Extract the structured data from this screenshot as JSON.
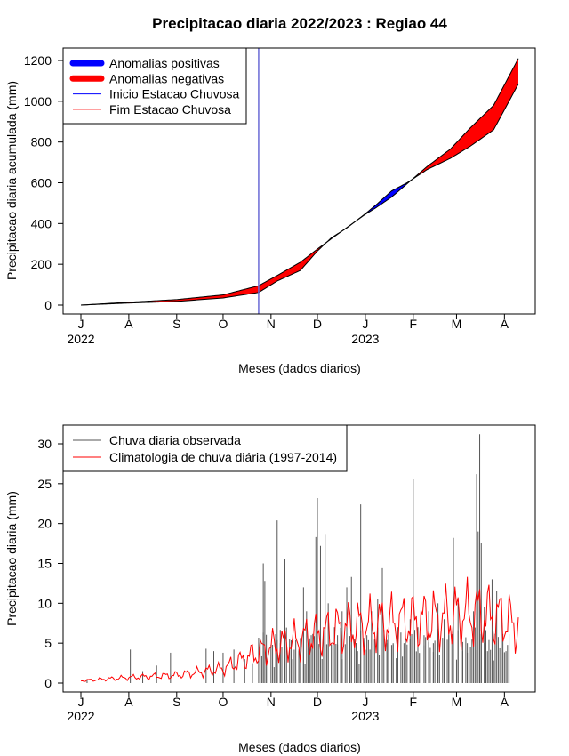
{
  "chart_data": [
    {
      "type": "area",
      "title": "Precipitacao diaria 2022/2023 : Regiao 44",
      "xlabel": "Meses (dados diarios)",
      "ylabel": "Precipitacao diaria acumulada (mm)",
      "ylim": [
        0,
        1200
      ],
      "yticks": [
        "0",
        "200",
        "400",
        "600",
        "800",
        "1000",
        "1200"
      ],
      "xticks": [
        "J",
        "A",
        "S",
        "O",
        "N",
        "D",
        "J",
        "F",
        "M",
        "A"
      ],
      "year_labels": [
        {
          "text": "2022",
          "month": "J"
        },
        {
          "text": "2023",
          "month": "J"
        }
      ],
      "x_start": "2022-07-01",
      "x_end": "2023-04-10",
      "legend_position": "top-left",
      "legend": [
        {
          "label": "Anomalias positivas",
          "color": "#0000ff",
          "style": "thick"
        },
        {
          "label": "Anomalias negativas",
          "color": "#ff0000",
          "style": "thick"
        },
        {
          "label": "Inicio Estacao Chuvosa",
          "color": "#0000ff",
          "style": "thin"
        },
        {
          "label": "Fim Estacao Chuvosa",
          "color": "#ff0000",
          "style": "thin"
        }
      ],
      "rainy_season_start": "2022-10-24",
      "series": [
        {
          "name": "observed",
          "color": "#000000",
          "points": [
            [
              "2022-07-01",
              0
            ],
            [
              "2022-08-01",
              10
            ],
            [
              "2022-09-01",
              18
            ],
            [
              "2022-10-01",
              35
            ],
            [
              "2022-10-24",
              62
            ],
            [
              "2022-11-05",
              118
            ],
            [
              "2022-11-20",
              170
            ],
            [
              "2022-12-01",
              265
            ],
            [
              "2022-12-10",
              330
            ],
            [
              "2022-12-20",
              378
            ],
            [
              "2023-01-01",
              448
            ],
            [
              "2023-01-08",
              492
            ],
            [
              "2023-01-18",
              560
            ],
            [
              "2023-01-28",
              600
            ],
            [
              "2023-02-10",
              665
            ],
            [
              "2023-02-25",
              720
            ],
            [
              "2023-03-10",
              780
            ],
            [
              "2023-03-25",
              860
            ],
            [
              "2023-04-10",
              1085
            ]
          ]
        },
        {
          "name": "climatology",
          "color": "#000000",
          "points": [
            [
              "2022-07-01",
              0
            ],
            [
              "2022-08-01",
              14
            ],
            [
              "2022-09-01",
              27
            ],
            [
              "2022-10-01",
              50
            ],
            [
              "2022-10-24",
              95
            ],
            [
              "2022-11-05",
              145
            ],
            [
              "2022-11-20",
              210
            ],
            [
              "2022-12-01",
              275
            ],
            [
              "2022-12-10",
              325
            ],
            [
              "2022-12-20",
              380
            ],
            [
              "2023-01-01",
              445
            ],
            [
              "2023-01-08",
              478
            ],
            [
              "2023-01-18",
              530
            ],
            [
              "2023-01-28",
              595
            ],
            [
              "2023-02-10",
              680
            ],
            [
              "2023-02-25",
              765
            ],
            [
              "2023-03-10",
              870
            ],
            [
              "2023-03-25",
              980
            ],
            [
              "2023-04-10",
              1210
            ]
          ]
        }
      ]
    },
    {
      "type": "bar",
      "title": "",
      "xlabel": "Meses (dados diarios)",
      "ylabel": "Precipitacao diaria (mm)",
      "ylim": [
        0,
        32
      ],
      "yticks": [
        "0",
        "5",
        "10",
        "15",
        "20",
        "25",
        "30"
      ],
      "xticks": [
        "J",
        "A",
        "S",
        "O",
        "N",
        "D",
        "J",
        "F",
        "M",
        "A"
      ],
      "year_labels": [
        {
          "text": "2022",
          "month": "J"
        },
        {
          "text": "2023",
          "month": "J"
        }
      ],
      "x_start": "2022-07-01",
      "x_end": "2023-04-10",
      "legend_position": "top-left",
      "legend": [
        {
          "label": "Chuva diaria observada",
          "color": "#555555"
        },
        {
          "label": "Climatologia de chuva diária (1997-2014)",
          "color": "#ff0000"
        }
      ],
      "observed_daily": {
        "name": "Chuva diaria observada",
        "color": "#555555",
        "start": "2022-07-01",
        "values": [
          0,
          0.5,
          0,
          0,
          0,
          0,
          0,
          0,
          0,
          0,
          0,
          0,
          0,
          0,
          0,
          0,
          0,
          0,
          0,
          0,
          0,
          0,
          0,
          0,
          0,
          0,
          0,
          0,
          0,
          0,
          0,
          0,
          0,
          0,
          0,
          0,
          0,
          0.3,
          0,
          0,
          0,
          0,
          0,
          0,
          0,
          0,
          0,
          0,
          0,
          0,
          0,
          0,
          0,
          0,
          0,
          0,
          4.2,
          0,
          0,
          0,
          0,
          0,
          0,
          0,
          0,
          0,
          0,
          0,
          0,
          0,
          0,
          0,
          0,
          0,
          0,
          0,
          0,
          0,
          0,
          0,
          0,
          0,
          0,
          2,
          0,
          0,
          0,
          0,
          0,
          0,
          0,
          0,
          0,
          0,
          0,
          0,
          0,
          0,
          0,
          0,
          0,
          0,
          0,
          0,
          0,
          0,
          4,
          0,
          0,
          0,
          0,
          0,
          0,
          0,
          0,
          0,
          0,
          0,
          0,
          0,
          0,
          0,
          0,
          0,
          0,
          0,
          0,
          0,
          0,
          0,
          0,
          0,
          0,
          0,
          0,
          0,
          0,
          0,
          0,
          0,
          0,
          0,
          0,
          0,
          0,
          0,
          0,
          0,
          0,
          0,
          0,
          0,
          0,
          0,
          0,
          0,
          0,
          0,
          0,
          0,
          0,
          0,
          0,
          0,
          0,
          0,
          0,
          0,
          0,
          0,
          0,
          0,
          0,
          0,
          0,
          0,
          0,
          0,
          0,
          0,
          0,
          0,
          0,
          0,
          0,
          0,
          0,
          0,
          0,
          0,
          0,
          0,
          0,
          0,
          0,
          0,
          0,
          0,
          0,
          0,
          0,
          0,
          0,
          0,
          0,
          0,
          0,
          0,
          0,
          0,
          0,
          0,
          0,
          0,
          0,
          0,
          0,
          0,
          0,
          0,
          0,
          0,
          0,
          0,
          0,
          0,
          0,
          0,
          0,
          0,
          0,
          0,
          0,
          0,
          0,
          0,
          0,
          0,
          0,
          0,
          0,
          0,
          0,
          0,
          0,
          0,
          0,
          0,
          0,
          0,
          0,
          0,
          0,
          0,
          0,
          0,
          0,
          0,
          0,
          0,
          0,
          0,
          0,
          0,
          0,
          0,
          0,
          0,
          0,
          0,
          0,
          0,
          0,
          0,
          0,
          0,
          0,
          0,
          0,
          0,
          0,
          0,
          0,
          0,
          0,
          0,
          0,
          0,
          0,
          0,
          0,
          0,
          0,
          0,
          0,
          0
        ],
        "peaks": [
          [
            "2022-07-05",
            0.5
          ],
          [
            "2022-08-02",
            4.2
          ],
          [
            "2022-08-10",
            1.5
          ],
          [
            "2022-08-19",
            2.2
          ],
          [
            "2022-08-28",
            3.8
          ],
          [
            "2022-09-20",
            4.3
          ],
          [
            "2022-09-25",
            4.0
          ],
          [
            "2022-10-01",
            3.8
          ],
          [
            "2022-10-08",
            4.2
          ],
          [
            "2022-10-15",
            3.0
          ],
          [
            "2022-10-20",
            2.5
          ],
          [
            "2022-10-25",
            5.5
          ],
          [
            "2022-10-27",
            15
          ],
          [
            "2022-10-28",
            12.8
          ],
          [
            "2022-11-03",
            2
          ],
          [
            "2022-11-05",
            20.4
          ],
          [
            "2022-11-07",
            5
          ],
          [
            "2022-11-10",
            15.5
          ],
          [
            "2022-11-15",
            3
          ],
          [
            "2022-11-19",
            4
          ],
          [
            "2022-11-22",
            12
          ],
          [
            "2022-11-24",
            9
          ],
          [
            "2022-11-27",
            6
          ],
          [
            "2022-11-30",
            18.3
          ],
          [
            "2022-12-01",
            23.2
          ],
          [
            "2022-12-03",
            17.2
          ],
          [
            "2022-12-06",
            18.7
          ],
          [
            "2022-12-08",
            10
          ],
          [
            "2022-12-12",
            7
          ],
          [
            "2022-12-14",
            6
          ],
          [
            "2022-12-17",
            9
          ],
          [
            "2022-12-20",
            12
          ],
          [
            "2022-12-23",
            13.3
          ],
          [
            "2022-12-27",
            4
          ],
          [
            "2022-12-29",
            22.4
          ],
          [
            "2023-01-02",
            6
          ],
          [
            "2023-01-05",
            9
          ],
          [
            "2023-01-09",
            10.5
          ],
          [
            "2023-01-12",
            14.4
          ],
          [
            "2023-01-15",
            5
          ],
          [
            "2023-01-19",
            5
          ],
          [
            "2023-01-22",
            7
          ],
          [
            "2023-01-26",
            5
          ],
          [
            "2023-01-30",
            8
          ],
          [
            "2023-02-01",
            25.6
          ],
          [
            "2023-02-04",
            7
          ],
          [
            "2023-02-08",
            6
          ],
          [
            "2023-02-11",
            9
          ],
          [
            "2023-02-14",
            5
          ],
          [
            "2023-02-17",
            10
          ],
          [
            "2023-02-21",
            8
          ],
          [
            "2023-02-24",
            6
          ],
          [
            "2023-02-27",
            18.2
          ],
          [
            "2023-03-02",
            10
          ],
          [
            "2023-03-05",
            4
          ],
          [
            "2023-03-08",
            5
          ],
          [
            "2023-03-12",
            9
          ],
          [
            "2023-03-14",
            26.2
          ],
          [
            "2023-03-15",
            19
          ],
          [
            "2023-03-16",
            31.2
          ],
          [
            "2023-03-17",
            17.6
          ],
          [
            "2023-03-19",
            9.5
          ],
          [
            "2023-03-21",
            4
          ],
          [
            "2023-03-24",
            13
          ],
          [
            "2023-03-27",
            11.5
          ],
          [
            "2023-03-30",
            8.5
          ],
          [
            "2023-04-02",
            4
          ]
        ]
      },
      "climatology": {
        "name": "Climatologia de chuva diária (1997-2014)",
        "color": "#ff0000",
        "points": [
          [
            "2022-07-01",
            0.3
          ],
          [
            "2022-08-01",
            0.7
          ],
          [
            "2022-09-01",
            1.0
          ],
          [
            "2022-10-01",
            1.8
          ],
          [
            "2022-10-20",
            3.5
          ],
          [
            "2022-11-01",
            4.5
          ],
          [
            "2022-11-15",
            5.2
          ],
          [
            "2022-12-01",
            6.0
          ],
          [
            "2022-12-15",
            6.8
          ],
          [
            "2023-01-01",
            7.2
          ],
          [
            "2023-01-15",
            7.5
          ],
          [
            "2023-02-01",
            7.8
          ],
          [
            "2023-02-15",
            8.0
          ],
          [
            "2023-03-01",
            8.5
          ],
          [
            "2023-03-15",
            8.8
          ],
          [
            "2023-04-01",
            8.0
          ],
          [
            "2023-04-10",
            7.0
          ]
        ]
      }
    }
  ]
}
